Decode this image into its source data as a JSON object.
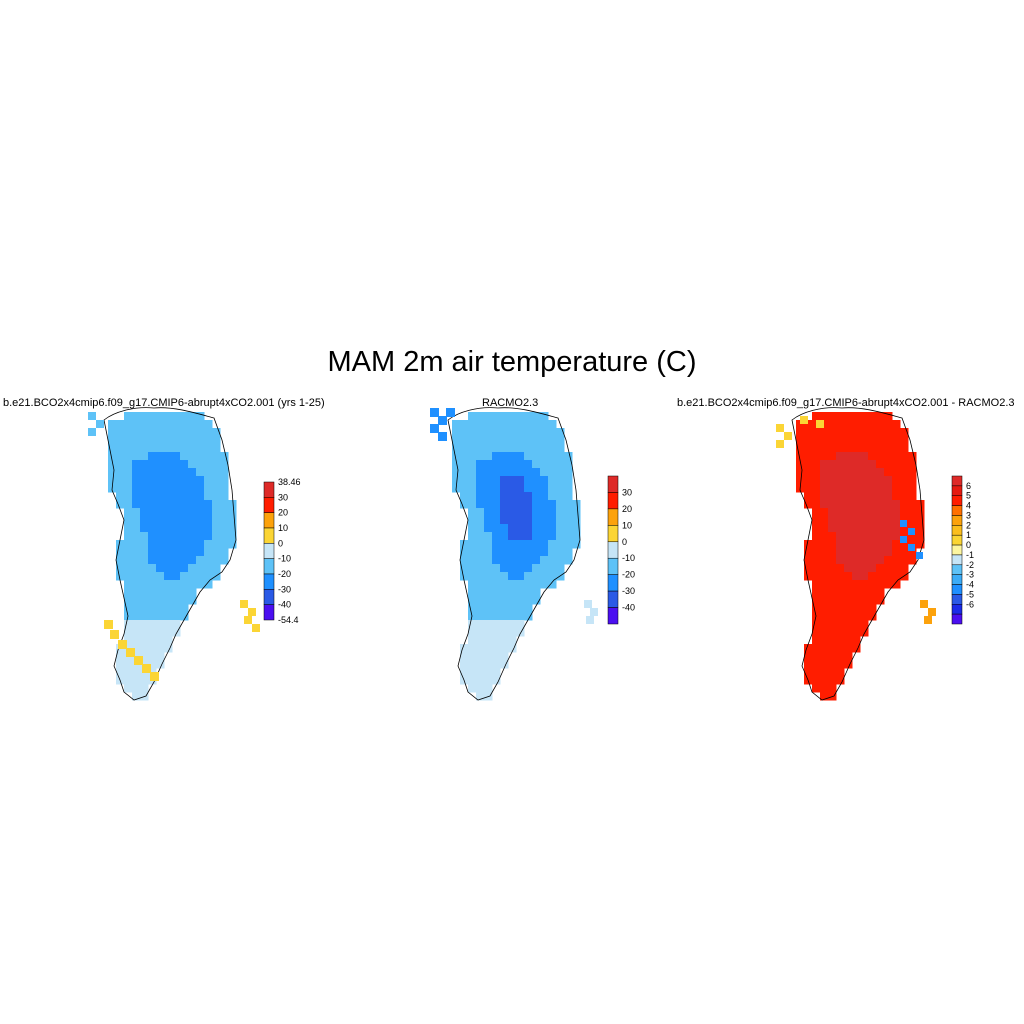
{
  "title": "MAM 2m air temperature (C)",
  "colors": {
    "ramp1": [
      "#4b0ff0",
      "#2a5ae6",
      "#1f90ff",
      "#5ec2f7",
      "#c6e5f7",
      "#fbd535",
      "#fca20c",
      "#ff1d00",
      "#de2a28"
    ],
    "ramp2": [
      "#4b0ff0",
      "#2a5ae6",
      "#1f90ff",
      "#5ec2f7",
      "#c6e5f7",
      "#fbd535",
      "#fca20c",
      "#ff1d00",
      "#de2a28"
    ],
    "ramp3": [
      "#4b0ff0",
      "#1b2be8",
      "#2a5ae6",
      "#1f90ff",
      "#3cacf7",
      "#5ec2f7",
      "#c6e5f7",
      "#fdf6a0",
      "#fbd535",
      "#fbbe1e",
      "#fca20c",
      "#ff7000",
      "#ff1d00",
      "#e61a10",
      "#de2a28"
    ]
  },
  "chart_data": [
    {
      "type": "heatmap",
      "title": "b.e21.BCO2x4cmip6.f09_g17.CMIP6-abrupt4xCO2.001 (yrs 1-25)",
      "colorbar": {
        "levels": [
          "38.46",
          "30",
          "20",
          "10",
          "0",
          "-10",
          "-20",
          "-30",
          "-40",
          "-54.4"
        ]
      },
      "legend_position": "right"
    },
    {
      "type": "heatmap",
      "title": "RACMO2.3",
      "colorbar": {
        "levels": [
          "30",
          "20",
          "10",
          "0",
          "-10",
          "-20",
          "-30",
          "-40"
        ]
      },
      "legend_position": "right"
    },
    {
      "type": "heatmap",
      "title": "b.e21.BCO2x4cmip6.f09_g17.CMIP6-abrupt4xCO2.001 - RACMO2.3",
      "colorbar": {
        "levels": [
          "6",
          "5",
          "4",
          "3",
          "2",
          "1",
          "0",
          "-1",
          "-2",
          "-3",
          "-4",
          "-5",
          "-6"
        ]
      },
      "legend_position": "right"
    }
  ]
}
